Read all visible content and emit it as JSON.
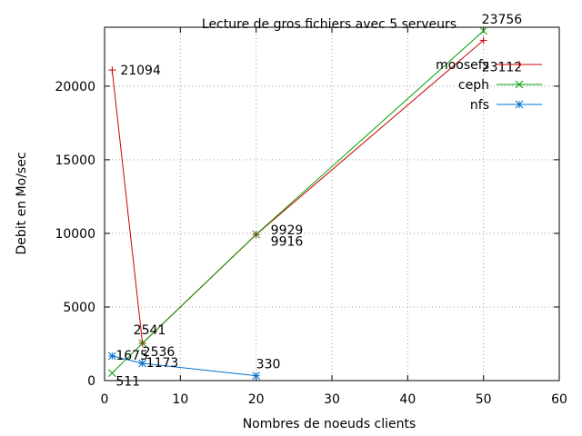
{
  "chart_data": {
    "type": "line",
    "title": "Lecture de gros fichiers avec 5 serveurs",
    "xlabel": "Nombres de noeuds clients",
    "ylabel": "Debit en Mo/sec",
    "xlim": [
      0,
      60
    ],
    "ylim": [
      0,
      24000
    ],
    "x_ticks": [
      0,
      10,
      20,
      30,
      40,
      50,
      60
    ],
    "y_ticks": [
      0,
      5000,
      10000,
      15000,
      20000
    ],
    "grid": true,
    "legend_position": "top-right",
    "series": [
      {
        "name": "moosefs",
        "color": "#cc0000",
        "marker": "plus",
        "points": [
          [
            1,
            21094
          ],
          [
            5,
            2536
          ],
          [
            20,
            9916
          ],
          [
            50,
            23112
          ]
        ],
        "labels": [
          "21094",
          "2536",
          "9916",
          "23112"
        ]
      },
      {
        "name": "ceph",
        "color": "#00a000",
        "marker": "cross",
        "points": [
          [
            1,
            511
          ],
          [
            5,
            2541
          ],
          [
            20,
            9929
          ],
          [
            50,
            23756
          ]
        ],
        "labels": [
          "511",
          "2541",
          "9929",
          "23756"
        ]
      },
      {
        "name": "nfs",
        "color": "#0070d0",
        "marker": "star",
        "points": [
          [
            1,
            1675
          ],
          [
            5,
            1173
          ],
          [
            20,
            330
          ]
        ],
        "labels": [
          "1675",
          "1173",
          "330"
        ]
      }
    ]
  }
}
